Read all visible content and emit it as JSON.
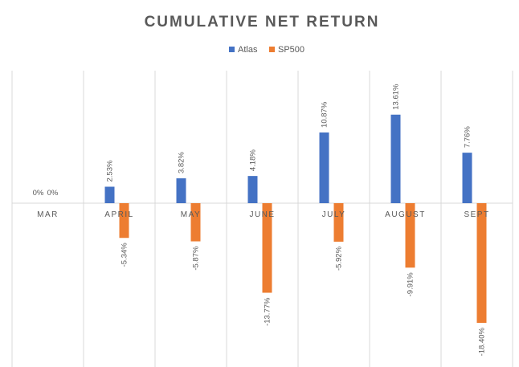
{
  "chart_data": {
    "type": "bar",
    "title": "CUMULATIVE NET RETURN",
    "categories": [
      "MAR",
      "APRIL",
      "MAY",
      "JUNE",
      "JULY",
      "AUGUST",
      "SEPT"
    ],
    "series": [
      {
        "name": "Atlas",
        "color": "#4472C4",
        "values": [
          0,
          2.53,
          3.82,
          4.18,
          10.87,
          13.61,
          7.76
        ],
        "labels": [
          "0%",
          "2.53%",
          "3.82%",
          "4.18%",
          "10.87%",
          "13.61%",
          "7.76%"
        ]
      },
      {
        "name": "SP500",
        "color": "#ED7D31",
        "values": [
          0,
          -5.34,
          -5.87,
          -13.77,
          -5.92,
          -9.91,
          -18.4
        ],
        "labels": [
          "0%",
          "-5.34%",
          "-5.87%",
          "-13.77%",
          "-5.92%",
          "-9.91%",
          "-18.40%"
        ]
      }
    ],
    "xlabel": "",
    "ylabel": "",
    "ylim": [
      -25,
      20
    ],
    "legend_position": "top",
    "grid": "vertical category separators"
  }
}
